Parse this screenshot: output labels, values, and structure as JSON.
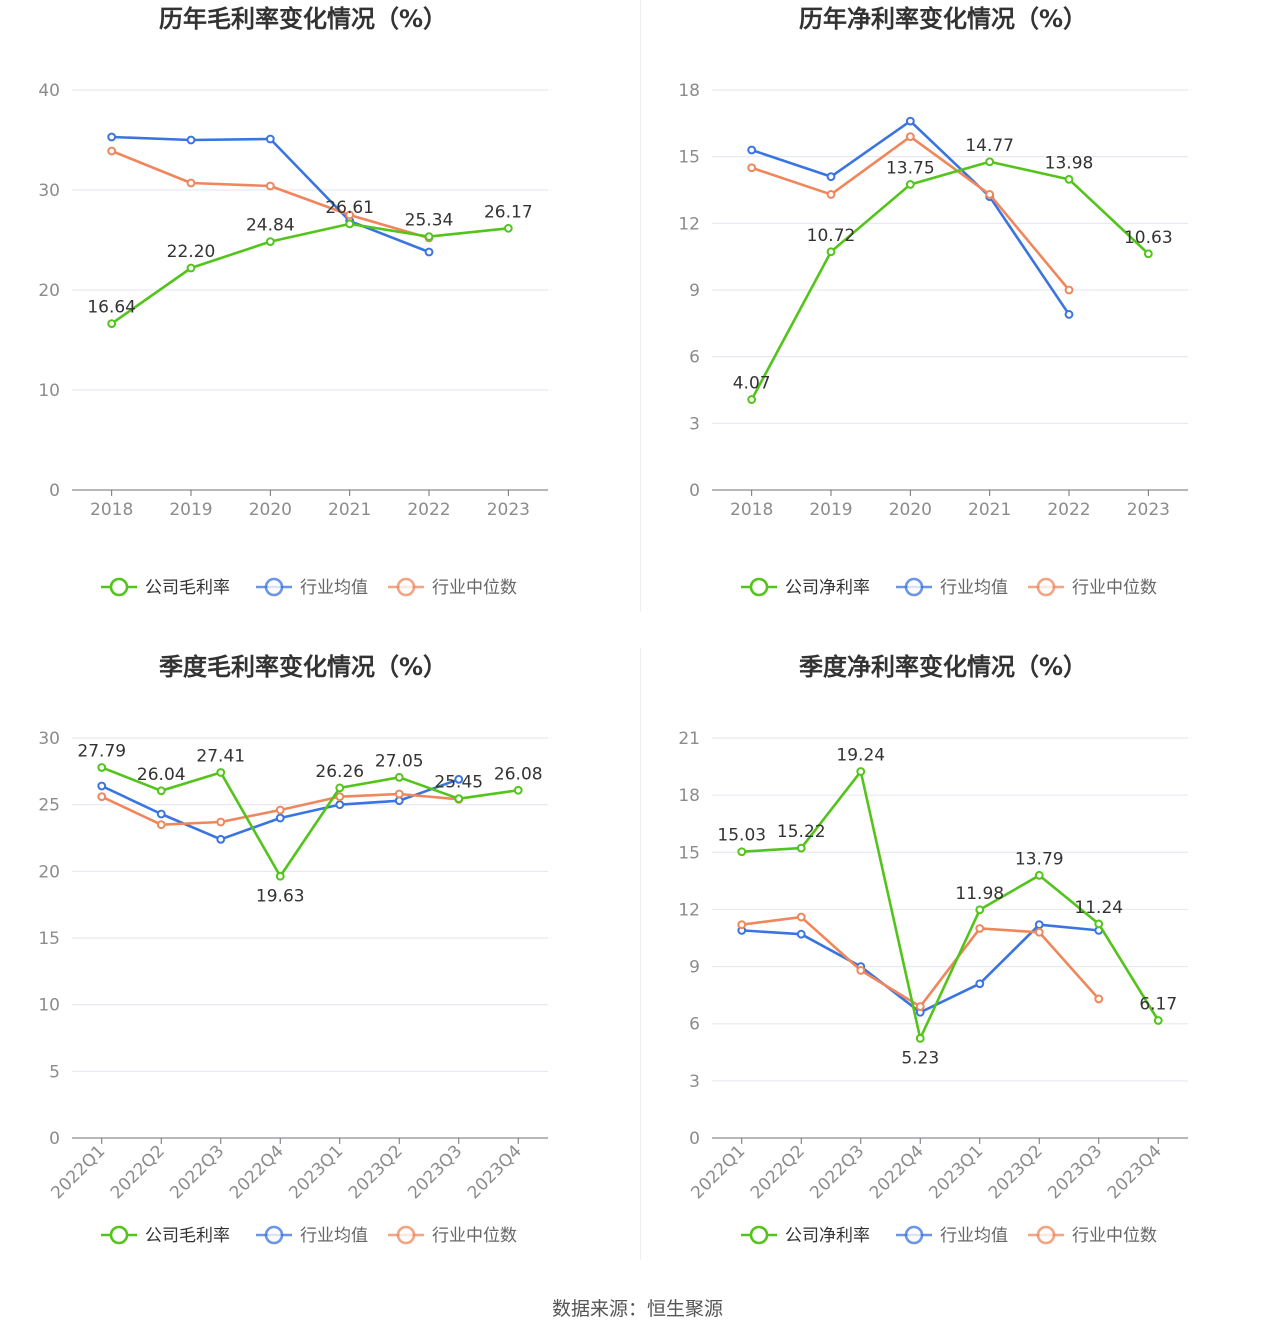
{
  "source": "数据来源：恒生聚源",
  "colors": {
    "company": "#52c41a",
    "avg": "#3a74e0",
    "median": "#f0865b"
  },
  "chart_data": [
    {
      "type": "line",
      "title": "历年毛利率变化情况（%）",
      "categories": [
        "2018",
        "2019",
        "2020",
        "2021",
        "2022",
        "2023"
      ],
      "ylim": [
        0,
        40
      ],
      "yticks": [
        0,
        10,
        20,
        30,
        40
      ],
      "grid": true,
      "legend_position": "bottom",
      "series": [
        {
          "name": "公司毛利率",
          "key": "company",
          "values": [
            16.64,
            22.2,
            24.84,
            26.61,
            25.34,
            26.17
          ],
          "labels": [
            "16.64",
            "22.20",
            "24.84",
            "26.61",
            "25.34",
            "26.17"
          ]
        },
        {
          "name": "行业均值",
          "key": "avg",
          "values": [
            35.3,
            35.0,
            35.1,
            26.9,
            23.8,
            null
          ]
        },
        {
          "name": "行业中位数",
          "key": "median",
          "values": [
            33.9,
            30.7,
            30.4,
            27.5,
            25.2,
            null
          ]
        }
      ]
    },
    {
      "type": "line",
      "title": "历年净利率变化情况（%）",
      "categories": [
        "2018",
        "2019",
        "2020",
        "2021",
        "2022",
        "2023"
      ],
      "ylim": [
        0,
        18
      ],
      "yticks": [
        0,
        3,
        6,
        9,
        12,
        15,
        18
      ],
      "grid": true,
      "legend_position": "bottom",
      "series": [
        {
          "name": "公司净利率",
          "key": "company",
          "values": [
            4.07,
            10.72,
            13.75,
            14.77,
            13.98,
            10.63
          ],
          "labels": [
            "4.07",
            "10.72",
            "13.75",
            "14.77",
            "13.98",
            "10.63"
          ]
        },
        {
          "name": "行业均值",
          "key": "avg",
          "values": [
            15.3,
            14.1,
            16.6,
            13.2,
            7.9,
            null
          ]
        },
        {
          "name": "行业中位数",
          "key": "median",
          "values": [
            14.5,
            13.3,
            15.9,
            13.3,
            9.0,
            null
          ]
        }
      ]
    },
    {
      "type": "line",
      "title": "季度毛利率变化情况（%）",
      "categories": [
        "2022Q1",
        "2022Q2",
        "2022Q3",
        "2022Q4",
        "2023Q1",
        "2023Q2",
        "2023Q3",
        "2023Q4"
      ],
      "ylim": [
        0,
        30
      ],
      "yticks": [
        0,
        5,
        10,
        15,
        20,
        25,
        30
      ],
      "grid": true,
      "rotate_xticks": true,
      "legend_position": "bottom",
      "series": [
        {
          "name": "公司毛利率",
          "key": "company",
          "values": [
            27.79,
            26.04,
            27.41,
            19.63,
            26.26,
            27.05,
            25.45,
            26.08
          ],
          "labels": [
            "27.79",
            "26.04",
            "27.41",
            "19.63",
            "26.26",
            "27.05",
            "25.45",
            "26.08"
          ]
        },
        {
          "name": "行业均值",
          "key": "avg",
          "values": [
            26.4,
            24.3,
            22.4,
            24.0,
            25.0,
            25.3,
            26.9,
            null
          ]
        },
        {
          "name": "行业中位数",
          "key": "median",
          "values": [
            25.6,
            23.5,
            23.7,
            24.6,
            25.6,
            25.8,
            25.4,
            null
          ]
        }
      ]
    },
    {
      "type": "line",
      "title": "季度净利率变化情况（%）",
      "categories": [
        "2022Q1",
        "2022Q2",
        "2022Q3",
        "2022Q4",
        "2023Q1",
        "2023Q2",
        "2023Q3",
        "2023Q4"
      ],
      "ylim": [
        0,
        21
      ],
      "yticks": [
        0,
        3,
        6,
        9,
        12,
        15,
        18,
        21
      ],
      "grid": true,
      "rotate_xticks": true,
      "legend_position": "bottom",
      "series": [
        {
          "name": "公司净利率",
          "key": "company",
          "values": [
            15.03,
            15.22,
            19.24,
            5.23,
            11.98,
            13.79,
            11.24,
            6.17
          ],
          "labels": [
            "15.03",
            "15.22",
            "19.24",
            "5.23",
            "11.98",
            "13.79",
            "11.24",
            "6.17"
          ]
        },
        {
          "name": "行业均值",
          "key": "avg",
          "values": [
            10.9,
            10.7,
            9.0,
            6.6,
            8.1,
            11.2,
            10.9,
            null
          ]
        },
        {
          "name": "行业中位数",
          "key": "median",
          "values": [
            11.2,
            11.6,
            8.8,
            6.9,
            11.0,
            10.8,
            7.3,
            null
          ]
        }
      ]
    }
  ]
}
